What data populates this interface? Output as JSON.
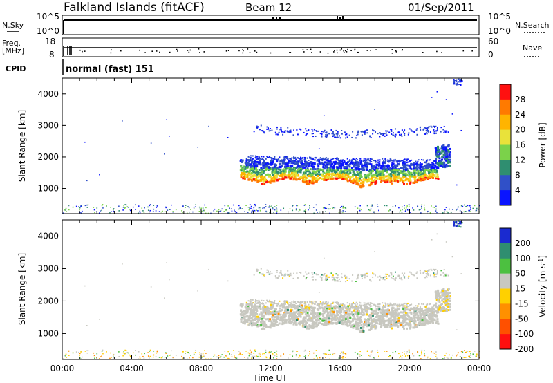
{
  "header": {
    "station": "Falkland Islands (fitACF)",
    "beam": "Beam 12",
    "date": "01/Sep/2011"
  },
  "strips": {
    "nsky_label": "N.Sky",
    "nsky_ticks": [
      "10^5",
      "10^0"
    ],
    "nsearch_label": "N.Search",
    "nsearch_ticks": [
      "10^5",
      "10^0"
    ],
    "freq_label_line1": "Freq.",
    "freq_label_line2": "[MHz]",
    "freq_ticks": [
      "18",
      "8"
    ],
    "nave_label": "Nave",
    "nave_ticks": [
      "60",
      "0"
    ],
    "cpid_label": "CPID",
    "cpid_value": "normal (fast) 151"
  },
  "axes": {
    "ylabel": "Slant Range [km]",
    "xlabel": "Time UT",
    "y_ticks": [
      "4000",
      "3000",
      "2000",
      "1000"
    ],
    "x_ticks": [
      "00:00",
      "04:00",
      "08:00",
      "12:00",
      "16:00",
      "20:00",
      "00:00"
    ]
  },
  "power_scale": {
    "label": "Power [dB]",
    "ticks": [
      "28",
      "24",
      "20",
      "16",
      "12",
      "8",
      "4"
    ],
    "colors": [
      "#ff1010",
      "#ff7a00",
      "#ffb400",
      "#e9e23a",
      "#7bd24a",
      "#2f8e70",
      "#3050c8",
      "#0a14ff"
    ]
  },
  "velocity_scale": {
    "label_main": "Velocity [m s",
    "label_sup": "-1",
    "label_end": "]",
    "ticks": [
      "200",
      "100",
      "50",
      "15",
      "-15",
      "-50",
      "-100",
      "-200"
    ],
    "colors": [
      "#1a2ad0",
      "#2f8e70",
      "#4cc040",
      "#c8c8c0",
      "#ffd000",
      "#ff9000",
      "#ff5000",
      "#ff1010"
    ]
  },
  "chart_data": [
    {
      "type": "heatmap",
      "title": "",
      "xlabel": "",
      "ylabel": "Slant Range [km]",
      "x_range_hours": [
        0,
        24
      ],
      "ylim": [
        200,
        4500
      ],
      "colorbar": "Power [dB]",
      "colorbar_range": [
        0,
        32
      ],
      "features": [
        {
          "x_start": 10.2,
          "x_end": 21.6,
          "y_low": 1100,
          "y_high": 2100,
          "value_typical": 18
        },
        {
          "x_start": 11.0,
          "x_end": 22.2,
          "y_low": 2700,
          "y_high": 3300,
          "value_typical": 6
        },
        {
          "x_start": 22.5,
          "x_end": 23.0,
          "y_low": 4300,
          "y_high": 4500,
          "value_typical": 6
        },
        {
          "x_start": 0,
          "x_end": 24,
          "y_low": 200,
          "y_high": 500,
          "value_typical": 8
        }
      ]
    },
    {
      "type": "heatmap",
      "title": "",
      "xlabel": "Time UT",
      "ylabel": "Slant Range [km]",
      "x_range_hours": [
        0,
        24
      ],
      "ylim": [
        200,
        4500
      ],
      "colorbar": "Velocity [m s-1]",
      "colorbar_range": [
        -250,
        250
      ],
      "features": [
        {
          "x_start": 10.2,
          "x_end": 21.6,
          "y_low": 1100,
          "y_high": 2200,
          "value_typical": 0
        },
        {
          "x_start": 11.0,
          "x_end": 22.2,
          "y_low": 2700,
          "y_high": 3300,
          "value_typical": 0
        },
        {
          "x_start": 22.5,
          "x_end": 23.0,
          "y_low": 4300,
          "y_high": 4500,
          "value_typical": 200
        },
        {
          "x_start": 0,
          "x_end": 24,
          "y_low": 200,
          "y_high": 500,
          "value_typical": -30
        }
      ]
    }
  ]
}
